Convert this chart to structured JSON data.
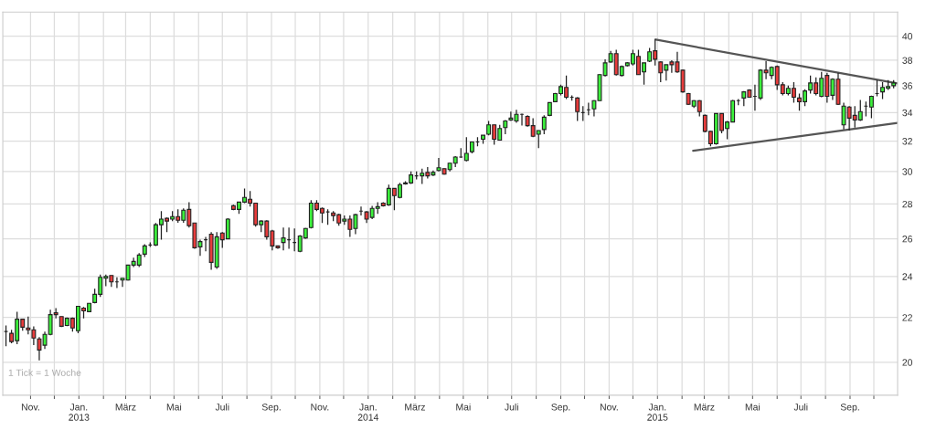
{
  "chart_data": {
    "type": "candlestick",
    "x": [
      "2012-10-01",
      "2012-10-08",
      "2012-10-15",
      "2012-10-22",
      "2012-10-29",
      "2012-11-05",
      "2012-11-12",
      "2012-11-19",
      "2012-11-26",
      "2012-12-03",
      "2012-12-10",
      "2012-12-17",
      "2012-12-24",
      "2012-12-31",
      "2013-01-07",
      "2013-01-14",
      "2013-01-21",
      "2013-01-28",
      "2013-02-04",
      "2013-02-11",
      "2013-02-18",
      "2013-02-25",
      "2013-03-04",
      "2013-03-11",
      "2013-03-18",
      "2013-03-25",
      "2013-04-01",
      "2013-04-08",
      "2013-04-15",
      "2013-04-22",
      "2013-04-29",
      "2013-05-06",
      "2013-05-13",
      "2013-05-20",
      "2013-05-27",
      "2013-06-03",
      "2013-06-10",
      "2013-06-17",
      "2013-06-24",
      "2013-07-01",
      "2013-07-08",
      "2013-07-15",
      "2013-07-22",
      "2013-07-29",
      "2013-08-05",
      "2013-08-12",
      "2013-08-19",
      "2013-08-26",
      "2013-09-02",
      "2013-09-09",
      "2013-09-16",
      "2013-09-23",
      "2013-09-30",
      "2013-10-07",
      "2013-10-14",
      "2013-10-21",
      "2013-10-28",
      "2013-11-04",
      "2013-11-11",
      "2013-11-18",
      "2013-11-25",
      "2013-12-02",
      "2013-12-09",
      "2013-12-16",
      "2013-12-23",
      "2013-12-30",
      "2014-01-06",
      "2014-01-13",
      "2014-01-20",
      "2014-01-27",
      "2014-02-03",
      "2014-02-10",
      "2014-02-17",
      "2014-02-24",
      "2014-03-03",
      "2014-03-10",
      "2014-03-17",
      "2014-03-24",
      "2014-03-31",
      "2014-04-07",
      "2014-04-14",
      "2014-04-21",
      "2014-04-28",
      "2014-05-05",
      "2014-05-12",
      "2014-05-19",
      "2014-05-26",
      "2014-06-02",
      "2014-06-09",
      "2014-06-16",
      "2014-06-23",
      "2014-06-30",
      "2014-07-07",
      "2014-07-14",
      "2014-07-21",
      "2014-07-28",
      "2014-08-04",
      "2014-08-11",
      "2014-08-18",
      "2014-08-25",
      "2014-09-01",
      "2014-09-08",
      "2014-09-15",
      "2014-09-22",
      "2014-09-29",
      "2014-10-06",
      "2014-10-13",
      "2014-10-20",
      "2014-10-27",
      "2014-11-03",
      "2014-11-10",
      "2014-11-17",
      "2014-11-24",
      "2014-12-01",
      "2014-12-08",
      "2014-12-15",
      "2014-12-22",
      "2014-12-29",
      "2015-01-05",
      "2015-01-12",
      "2015-01-19",
      "2015-01-26",
      "2015-02-02",
      "2015-02-09",
      "2015-02-16",
      "2015-02-23",
      "2015-03-02",
      "2015-03-09",
      "2015-03-16",
      "2015-03-23",
      "2015-03-30",
      "2015-04-06",
      "2015-04-13",
      "2015-04-20",
      "2015-04-27",
      "2015-05-04",
      "2015-05-11",
      "2015-05-18",
      "2015-05-25",
      "2015-06-01",
      "2015-06-08",
      "2015-06-15",
      "2015-06-22",
      "2015-06-29",
      "2015-07-06",
      "2015-07-13",
      "2015-07-20",
      "2015-07-27",
      "2015-08-03",
      "2015-08-10",
      "2015-08-17",
      "2015-08-24",
      "2015-08-31",
      "2015-09-07",
      "2015-09-14",
      "2015-09-21",
      "2015-09-28",
      "2015-10-05",
      "2015-10-12",
      "2015-10-19",
      "2015-10-26"
    ],
    "ohlc": [
      [
        21.35,
        21.63,
        20.69,
        21.35
      ],
      [
        21.27,
        21.43,
        20.82,
        20.9
      ],
      [
        20.94,
        22.27,
        20.78,
        21.92
      ],
      [
        21.92,
        21.92,
        21.39,
        21.55
      ],
      [
        21.51,
        22.04,
        21.22,
        21.43
      ],
      [
        21.43,
        21.59,
        20.74,
        21.06
      ],
      [
        21.02,
        21.1,
        20.08,
        20.53
      ],
      [
        20.74,
        21.35,
        20.57,
        21.22
      ],
      [
        21.22,
        22.36,
        21.18,
        22.13
      ],
      [
        22.22,
        22.44,
        21.96,
        22.13
      ],
      [
        22.04,
        22.04,
        21.55,
        21.59
      ],
      [
        21.63,
        22.0,
        21.6,
        21.96
      ],
      [
        21.96,
        22.0,
        21.35,
        21.51
      ],
      [
        21.39,
        22.53,
        21.27,
        22.53
      ],
      [
        22.44,
        22.49,
        21.96,
        22.31
      ],
      [
        22.27,
        22.67,
        22.27,
        22.67
      ],
      [
        22.71,
        23.38,
        22.67,
        23.11
      ],
      [
        23.11,
        24.1,
        22.98,
        23.96
      ],
      [
        23.91,
        24.1,
        23.51,
        24.0
      ],
      [
        24.05,
        24.05,
        23.47,
        23.73
      ],
      [
        23.73,
        23.96,
        23.42,
        23.73
      ],
      [
        23.82,
        23.91,
        23.47,
        23.91
      ],
      [
        23.82,
        24.6,
        23.8,
        24.59
      ],
      [
        24.59,
        24.98,
        24.49,
        24.78
      ],
      [
        24.59,
        25.22,
        24.49,
        25.12
      ],
      [
        25.17,
        25.71,
        25.02,
        25.61
      ],
      [
        25.66,
        25.8,
        25.56,
        25.66
      ],
      [
        25.66,
        26.89,
        25.6,
        26.79
      ],
      [
        26.79,
        27.58,
        25.95,
        27.11
      ],
      [
        27.16,
        27.21,
        26.37,
        27.0
      ],
      [
        27.11,
        27.58,
        27.0,
        27.26
      ],
      [
        27.26,
        27.68,
        26.9,
        27.05
      ],
      [
        27.05,
        27.74,
        26.9,
        27.63
      ],
      [
        27.68,
        28.11,
        26.63,
        26.74
      ],
      [
        26.89,
        26.89,
        25.46,
        25.51
      ],
      [
        25.56,
        25.95,
        25.07,
        25.85
      ],
      [
        25.95,
        26.11,
        25.32,
        25.95
      ],
      [
        26.26,
        26.37,
        24.34,
        24.73
      ],
      [
        24.49,
        26.37,
        24.39,
        26.11
      ],
      [
        26.32,
        26.37,
        25.51,
        25.95
      ],
      [
        26.0,
        27.16,
        26.0,
        27.11
      ],
      [
        27.89,
        27.95,
        27.63,
        27.68
      ],
      [
        27.68,
        28.11,
        27.42,
        28.11
      ],
      [
        28.11,
        28.94,
        28.05,
        28.39
      ],
      [
        28.28,
        28.78,
        27.84,
        28.05
      ],
      [
        28.05,
        28.08,
        26.68,
        26.79
      ],
      [
        26.79,
        27.05,
        26.37,
        27.0
      ],
      [
        27.0,
        27.05,
        25.95,
        26.11
      ],
      [
        26.44,
        26.5,
        25.37,
        25.61
      ],
      [
        25.61,
        25.63,
        25.46,
        25.51
      ],
      [
        25.8,
        26.63,
        25.37,
        26.05
      ],
      [
        25.95,
        26.63,
        25.46,
        25.95
      ],
      [
        25.8,
        26.58,
        25.32,
        25.8
      ],
      [
        25.32,
        26.21,
        25.27,
        26.16
      ],
      [
        26.05,
        26.6,
        26.0,
        26.58
      ],
      [
        26.63,
        28.22,
        26.58,
        28.05
      ],
      [
        28.05,
        28.22,
        27.58,
        27.68
      ],
      [
        27.74,
        27.79,
        26.89,
        27.47
      ],
      [
        27.53,
        27.68,
        26.79,
        27.53
      ],
      [
        27.47,
        27.58,
        27.0,
        27.32
      ],
      [
        27.37,
        27.42,
        26.74,
        26.89
      ],
      [
        27.0,
        27.32,
        26.79,
        27.11
      ],
      [
        27.11,
        27.32,
        26.11,
        26.53
      ],
      [
        26.58,
        27.42,
        26.26,
        27.37
      ],
      [
        27.58,
        27.84,
        27.32,
        27.58
      ],
      [
        27.53,
        27.58,
        26.89,
        27.11
      ],
      [
        27.21,
        27.89,
        27.11,
        27.74
      ],
      [
        27.74,
        28.11,
        27.42,
        27.84
      ],
      [
        28.05,
        28.11,
        27.84,
        27.89
      ],
      [
        27.95,
        29.17,
        27.89,
        28.94
      ],
      [
        28.94,
        28.95,
        27.63,
        28.5
      ],
      [
        28.39,
        29.28,
        28.33,
        29.17
      ],
      [
        29.22,
        29.39,
        29.17,
        29.28
      ],
      [
        29.28,
        30.0,
        29.22,
        29.78
      ],
      [
        29.72,
        30.0,
        29.5,
        29.72
      ],
      [
        29.72,
        30.18,
        29.22,
        29.89
      ],
      [
        29.94,
        30.29,
        29.56,
        29.72
      ],
      [
        29.78,
        30.06,
        29.72,
        29.94
      ],
      [
        30.06,
        30.88,
        30.0,
        30.24
      ],
      [
        30.18,
        30.2,
        29.8,
        29.83
      ],
      [
        30.12,
        30.55,
        30.0,
        30.53
      ],
      [
        30.53,
        31.0,
        30.29,
        30.94
      ],
      [
        30.94,
        31.53,
        30.88,
        30.94
      ],
      [
        30.71,
        32.27,
        30.65,
        31.18
      ],
      [
        31.29,
        31.94,
        31.18,
        31.94
      ],
      [
        31.94,
        32.27,
        31.65,
        31.94
      ],
      [
        32.13,
        32.4,
        31.82,
        32.4
      ],
      [
        32.47,
        33.4,
        32.4,
        33.13
      ],
      [
        33.13,
        33.13,
        31.76,
        32.13
      ],
      [
        32.07,
        33.13,
        32.07,
        32.87
      ],
      [
        32.93,
        33.47,
        32.47,
        33.4
      ],
      [
        33.47,
        34.07,
        33.4,
        33.6
      ],
      [
        33.4,
        34.2,
        33.27,
        33.87
      ],
      [
        33.87,
        33.93,
        33.07,
        33.87
      ],
      [
        33.73,
        33.8,
        33.0,
        33.07
      ],
      [
        33.07,
        33.6,
        32.27,
        32.33
      ],
      [
        32.47,
        32.75,
        31.53,
        32.73
      ],
      [
        32.8,
        33.8,
        32.47,
        33.67
      ],
      [
        33.8,
        34.75,
        33.75,
        34.73
      ],
      [
        34.8,
        35.45,
        34.75,
        35.4
      ],
      [
        35.4,
        36.07,
        35.27,
        35.93
      ],
      [
        35.87,
        36.79,
        35.0,
        35.13
      ],
      [
        35.13,
        35.27,
        34.87,
        35.13
      ],
      [
        35.07,
        35.13,
        33.4,
        34.07
      ],
      [
        34.0,
        34.47,
        33.4,
        34.0
      ],
      [
        34.2,
        34.73,
        33.8,
        34.2
      ],
      [
        34.27,
        34.9,
        33.73,
        34.87
      ],
      [
        34.87,
        36.9,
        34.85,
        36.86
      ],
      [
        36.79,
        38.08,
        36.71,
        37.79
      ],
      [
        37.86,
        38.77,
        37.79,
        38.54
      ],
      [
        38.54,
        38.85,
        36.79,
        36.86
      ],
      [
        36.79,
        37.57,
        36.71,
        37.5
      ],
      [
        37.57,
        37.86,
        37.5,
        37.79
      ],
      [
        37.71,
        38.85,
        37.57,
        38.54
      ],
      [
        38.31,
        38.85,
        36.85,
        36.86
      ],
      [
        37.07,
        37.8,
        36.07,
        37.79
      ],
      [
        37.93,
        39.0,
        37.86,
        38.69
      ],
      [
        38.77,
        39.77,
        37.57,
        38.08
      ],
      [
        37.86,
        37.9,
        36.27,
        37.0
      ],
      [
        37.21,
        37.65,
        36.4,
        37.64
      ],
      [
        37.86,
        38.0,
        37.0,
        37.64
      ],
      [
        37.86,
        38.69,
        37.0,
        37.07
      ],
      [
        37.21,
        37.25,
        35.47,
        35.53
      ],
      [
        35.4,
        35.45,
        34.55,
        34.6
      ],
      [
        34.47,
        34.9,
        34.33,
        34.87
      ],
      [
        34.87,
        34.9,
        33.73,
        34.07
      ],
      [
        33.8,
        33.85,
        32.6,
        32.67
      ],
      [
        32.67,
        32.7,
        31.65,
        31.82
      ],
      [
        31.82,
        33.95,
        31.76,
        33.93
      ],
      [
        33.93,
        33.95,
        32.53,
        32.73
      ],
      [
        32.87,
        33.4,
        32.13,
        33.33
      ],
      [
        33.33,
        34.93,
        33.3,
        34.87
      ],
      [
        34.87,
        35.0,
        34.53,
        34.87
      ],
      [
        35.07,
        35.6,
        34.47,
        35.53
      ],
      [
        35.67,
        35.73,
        35.1,
        35.13
      ],
      [
        35.2,
        36.07,
        34.13,
        35.2
      ],
      [
        35.07,
        37.29,
        34.93,
        37.21
      ],
      [
        37.21,
        37.93,
        36.5,
        37.0
      ],
      [
        36.79,
        37.5,
        36.5,
        37.43
      ],
      [
        37.5,
        37.57,
        35.67,
        36.07
      ],
      [
        36.07,
        36.27,
        35.27,
        35.4
      ],
      [
        35.4,
        36.0,
        35.27,
        35.8
      ],
      [
        35.8,
        36.27,
        34.73,
        35.13
      ],
      [
        35.07,
        35.4,
        34.13,
        34.8
      ],
      [
        34.8,
        35.73,
        34.47,
        35.6
      ],
      [
        35.67,
        36.79,
        35.4,
        36.21
      ],
      [
        36.21,
        36.64,
        35.27,
        35.4
      ],
      [
        35.2,
        37.07,
        35.13,
        36.57
      ],
      [
        36.79,
        37.0,
        34.73,
        35.2
      ],
      [
        35.27,
        36.57,
        34.93,
        36.5
      ],
      [
        36.5,
        37.0,
        34.55,
        34.6
      ],
      [
        33.13,
        34.73,
        32.8,
        34.47
      ],
      [
        34.4,
        34.47,
        32.73,
        33.6
      ],
      [
        33.8,
        34.47,
        32.93,
        33.47
      ],
      [
        33.47,
        34.93,
        33.4,
        34.07
      ],
      [
        34.47,
        34.8,
        33.73,
        34.47
      ],
      [
        34.4,
        35.25,
        33.6,
        35.2
      ],
      [
        35.4,
        36.43,
        35.2,
        35.4
      ],
      [
        35.53,
        36.27,
        35.0,
        35.87
      ],
      [
        35.8,
        36.43,
        35.67,
        35.93
      ],
      [
        36.0,
        36.43,
        35.8,
        36.21
      ]
    ],
    "series": [
      {
        "type": "line",
        "color": "#555555",
        "x": [
          "2014-12-30",
          "2015-10-31"
        ],
        "values": [
          39.7,
          36.17
        ]
      },
      {
        "type": "line",
        "color": "#555555",
        "x": [
          "2015-02-15",
          "2015-10-31"
        ],
        "values": [
          31.35,
          33.26
        ]
      }
    ],
    "log": true,
    "ylim": [
      18.65,
      42.1
    ],
    "yticks": [
      20,
      22,
      24,
      26,
      28,
      30,
      32,
      34,
      36,
      38,
      40
    ],
    "xlim": [
      "2012-09-27",
      "2015-10-31"
    ],
    "xticks": [
      {
        "value": "2012-11-01",
        "label": "Nov."
      },
      {
        "value": "2012-12-01",
        "label": null
      },
      {
        "value": "2013-01-01",
        "label": "Jan.\n2013"
      },
      {
        "value": "2013-02-01",
        "label": null
      },
      {
        "value": "2013-03-01",
        "label": "März"
      },
      {
        "value": "2013-04-01",
        "label": null
      },
      {
        "value": "2013-05-01",
        "label": "Mai"
      },
      {
        "value": "2013-06-01",
        "label": null
      },
      {
        "value": "2013-07-01",
        "label": "Juli"
      },
      {
        "value": "2013-08-01",
        "label": null
      },
      {
        "value": "2013-09-01",
        "label": "Sep."
      },
      {
        "value": "2013-10-01",
        "label": null
      },
      {
        "value": "2013-11-01",
        "label": "Nov."
      },
      {
        "value": "2013-12-01",
        "label": null
      },
      {
        "value": "2014-01-01",
        "label": "Jan.\n2014"
      },
      {
        "value": "2014-02-01",
        "label": null
      },
      {
        "value": "2014-03-01",
        "label": "März"
      },
      {
        "value": "2014-04-01",
        "label": null
      },
      {
        "value": "2014-05-01",
        "label": "Mai"
      },
      {
        "value": "2014-06-01",
        "label": null
      },
      {
        "value": "2014-07-01",
        "label": "Juli"
      },
      {
        "value": "2014-08-01",
        "label": null
      },
      {
        "value": "2014-09-01",
        "label": "Sep."
      },
      {
        "value": "2014-10-01",
        "label": null
      },
      {
        "value": "2014-11-01",
        "label": "Nov."
      },
      {
        "value": "2014-12-01",
        "label": null
      },
      {
        "value": "2015-01-01",
        "label": "Jan.\n2015"
      },
      {
        "value": "2015-02-01",
        "label": null
      },
      {
        "value": "2015-03-01",
        "label": "März"
      },
      {
        "value": "2015-04-01",
        "label": null
      },
      {
        "value": "2015-05-01",
        "label": "Mai"
      },
      {
        "value": "2015-06-01",
        "label": null
      },
      {
        "value": "2015-07-01",
        "label": "Juli"
      },
      {
        "value": "2015-08-01",
        "label": null
      },
      {
        "value": "2015-09-01",
        "label": "Sep."
      },
      {
        "value": "2015-10-01",
        "label": null
      }
    ],
    "grid": true,
    "annotations": [
      "1 Tick = 1 Woche"
    ]
  }
}
